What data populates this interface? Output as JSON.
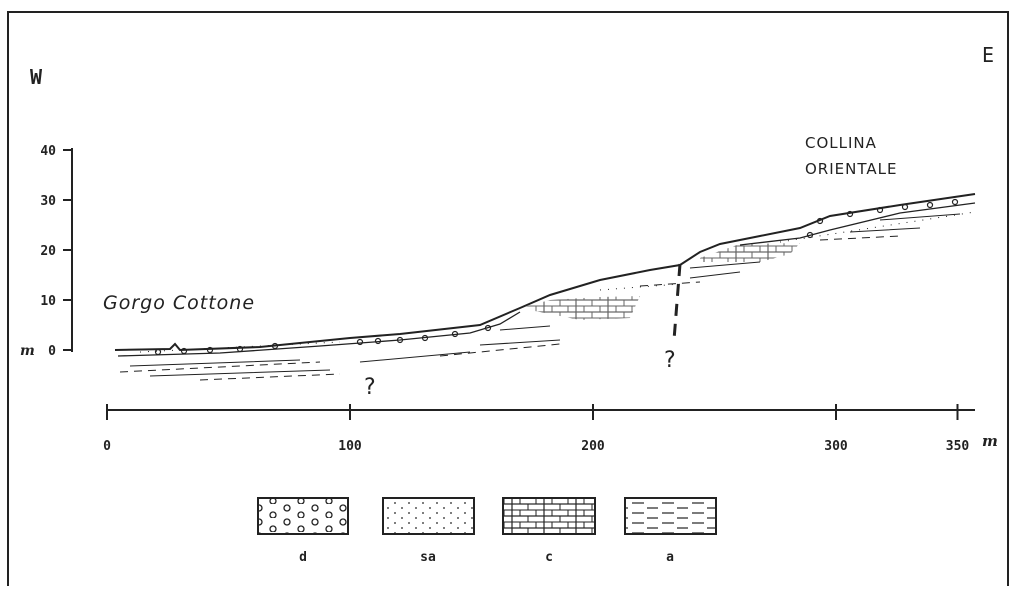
{
  "directions": {
    "west": "W",
    "east": "E"
  },
  "places": {
    "left": "Gorgo Cottone",
    "right": [
      "COLLINA",
      "ORIENTALE"
    ]
  },
  "axes": {
    "unit": "m",
    "y_ticks": [
      40,
      30,
      20,
      10,
      0
    ],
    "x_ticks": [
      0,
      100,
      200,
      300,
      350
    ]
  },
  "unknowns": [
    "?",
    "?"
  ],
  "legend": [
    "d",
    "sa",
    "c",
    "a"
  ]
}
